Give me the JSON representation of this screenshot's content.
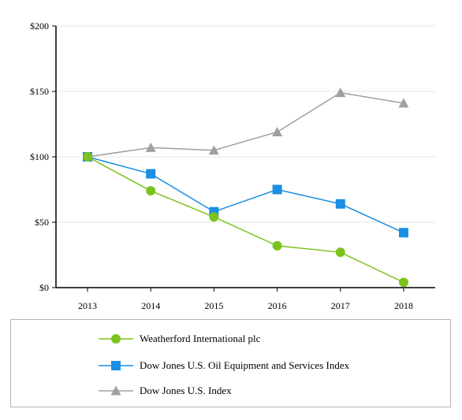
{
  "chart_data": {
    "type": "line",
    "categories": [
      "2013",
      "2014",
      "2015",
      "2016",
      "2017",
      "2018"
    ],
    "ylim": [
      0,
      200
    ],
    "yticks": [
      0,
      50,
      100,
      150,
      200
    ],
    "ytick_labels": [
      "$0",
      "$50",
      "$100",
      "$150",
      "$200"
    ],
    "grid": "horizontal",
    "legend_position": "bottom",
    "series": [
      {
        "name": "Weatherford International plc",
        "color": "#7dc31e",
        "marker": "circle",
        "values": [
          100,
          74,
          54,
          32,
          27,
          4
        ]
      },
      {
        "name": "Dow Jones U.S. Oil Equipment and Services Index",
        "color": "#1a8fe3",
        "marker": "square",
        "values": [
          100,
          87,
          58,
          75,
          64,
          42
        ]
      },
      {
        "name": "Dow Jones U.S. Index",
        "color": "#a0a0a0",
        "marker": "triangle",
        "values": [
          100,
          107,
          105,
          119,
          149,
          141
        ]
      }
    ]
  }
}
